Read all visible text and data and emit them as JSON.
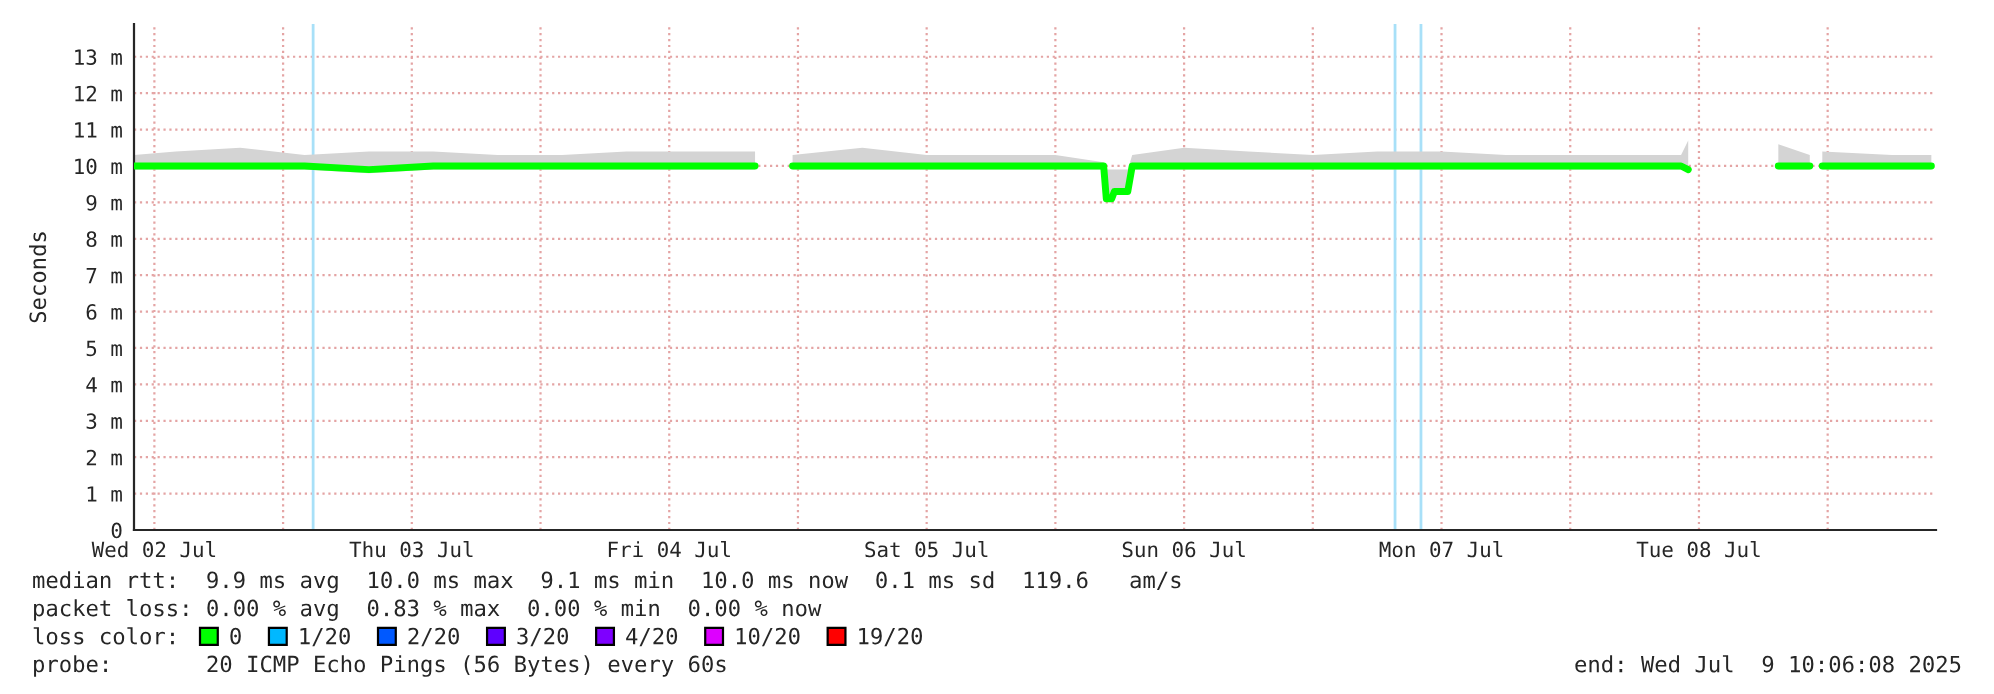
{
  "chart_data": {
    "type": "line",
    "ylabel": "Seconds",
    "x": [
      "2025-07-02T10:06",
      "2025-07-02T14:00",
      "2025-07-02T20:00",
      "2025-07-03T02:00",
      "2025-07-03T08:00",
      "2025-07-03T14:00",
      "2025-07-03T20:00",
      "2025-07-04T02:00",
      "2025-07-04T08:00",
      "2025-07-04T14:00",
      "2025-07-04T20:00",
      "2025-07-04T21:30",
      "2025-07-04T23:30",
      "2025-07-05T06:00",
      "2025-07-05T12:00",
      "2025-07-05T18:00",
      "2025-07-06T00:00",
      "2025-07-06T04:30",
      "2025-07-06T04:45",
      "2025-07-06T05:15",
      "2025-07-06T05:30",
      "2025-07-06T06:45",
      "2025-07-06T07:10",
      "2025-07-06T12:00",
      "2025-07-06T18:00",
      "2025-07-07T00:00",
      "2025-07-07T06:00",
      "2025-07-07T12:00",
      "2025-07-07T18:00",
      "2025-07-08T00:00",
      "2025-07-08T06:00",
      "2025-07-08T10:20",
      "2025-07-08T11:00",
      "2025-07-08T11:30",
      "2025-07-08T19:24",
      "2025-07-08T22:20",
      "2025-07-08T23:00",
      "2025-07-08T23:30",
      "2025-07-09T06:00",
      "2025-07-09T09:40"
    ],
    "series": [
      {
        "name": "0",
        "color": "#00ff00",
        "values": [
          10,
          10,
          10,
          10,
          9.9,
          10,
          10,
          10,
          10,
          10,
          10,
          null,
          10,
          10,
          10,
          10,
          10,
          10,
          9.1,
          9.1,
          9.3,
          9.3,
          10,
          10,
          10,
          10,
          10,
          10,
          10,
          10,
          10,
          10,
          9.9,
          null,
          10,
          10,
          null,
          10,
          10,
          10
        ],
        "lower": [
          9.9,
          9.9,
          9.9,
          9.9,
          9.8,
          9.9,
          9.9,
          9.9,
          9.9,
          9.9,
          9.9,
          null,
          9.9,
          9.9,
          9.9,
          9.9,
          9.9,
          9.9,
          9.1,
          9.1,
          9.3,
          9.3,
          9.9,
          9.9,
          9.9,
          9.9,
          9.9,
          9.9,
          9.9,
          9.9,
          9.9,
          9.9,
          9.9,
          null,
          9.9,
          9.9,
          null,
          9.9,
          9.9,
          9.9
        ],
        "upper": [
          10.3,
          10.4,
          10.5,
          10.3,
          10.4,
          10.4,
          10.3,
          10.3,
          10.4,
          10.4,
          10.4,
          null,
          10.3,
          10.5,
          10.3,
          10.3,
          10.3,
          10.1,
          9.9,
          9.9,
          9.9,
          9.9,
          10.3,
          10.5,
          10.4,
          10.3,
          10.4,
          10.4,
          10.3,
          10.3,
          10.3,
          10.3,
          10.7,
          null,
          10.6,
          10.3,
          null,
          10.4,
          10.3,
          10.3
        ]
      },
      {
        "name": "1/20",
        "color": "#00b8ff",
        "values": [
          null,
          null,
          null,
          null,
          null,
          null,
          null,
          null,
          null,
          null,
          null,
          null,
          null,
          null,
          null,
          null,
          null,
          null,
          null,
          null,
          null,
          null,
          null,
          null,
          null,
          null,
          null,
          null,
          null,
          null,
          null,
          null,
          null,
          null,
          null,
          null,
          null,
          null,
          null,
          null
        ]
      },
      {
        "name": "2/20",
        "color": "#0059ff",
        "values": [
          null,
          null,
          null,
          null,
          null,
          null,
          null,
          null,
          null,
          null,
          null,
          null,
          null,
          null,
          null,
          null,
          null,
          null,
          null,
          null,
          null,
          null,
          null,
          null,
          null,
          null,
          null,
          null,
          null,
          null,
          null,
          null,
          null,
          null,
          null,
          null,
          null,
          null,
          null,
          null
        ]
      },
      {
        "name": "3/20",
        "color": "#5e00ff",
        "values": [
          null,
          null,
          null,
          null,
          null,
          null,
          null,
          null,
          null,
          null,
          null,
          null,
          null,
          null,
          null,
          null,
          null,
          null,
          null,
          null,
          null,
          null,
          null,
          null,
          null,
          null,
          null,
          null,
          null,
          null,
          null,
          null,
          null,
          null,
          null,
          null,
          null,
          null,
          null,
          null
        ]
      },
      {
        "name": "4/20",
        "color": "#7e00ff",
        "values": [
          null,
          null,
          null,
          null,
          null,
          null,
          null,
          null,
          null,
          null,
          null,
          null,
          null,
          null,
          null,
          null,
          null,
          null,
          null,
          null,
          null,
          null,
          null,
          null,
          null,
          null,
          null,
          null,
          null,
          null,
          null,
          null,
          null,
          null,
          null,
          null,
          null,
          null,
          null,
          null
        ]
      },
      {
        "name": "10/20",
        "color": "#dd00ff",
        "values": [
          null,
          null,
          null,
          null,
          null,
          null,
          null,
          null,
          null,
          null,
          null,
          null,
          null,
          null,
          null,
          null,
          null,
          null,
          null,
          null,
          null,
          null,
          null,
          null,
          null,
          null,
          null,
          null,
          null,
          null,
          null,
          null,
          null,
          null,
          null,
          null,
          null,
          null,
          null,
          null
        ]
      },
      {
        "name": "19/20",
        "color": "#ff0000",
        "values": [
          null,
          null,
          null,
          null,
          null,
          null,
          null,
          null,
          null,
          null,
          null,
          null,
          null,
          null,
          null,
          null,
          null,
          null,
          null,
          null,
          null,
          null,
          null,
          null,
          null,
          null,
          null,
          null,
          null,
          null,
          null,
          null,
          null,
          null,
          null,
          null,
          null,
          null,
          null,
          null
        ]
      }
    ],
    "legend_title": "loss color:",
    "legend": "bottom left",
    "ref_lines": [
      {
        "axis": "x",
        "value": "2025-07-03T02:48",
        "color": "#a8e0f8"
      },
      {
        "axis": "x",
        "value": "2025-07-07T07:40",
        "color": "#a8e0f8"
      },
      {
        "axis": "x",
        "value": "2025-07-07T10:05",
        "color": "#a8e0f8"
      }
    ],
    "xlim": [
      "2025-07-02T10:06",
      "2025-07-09T10:06"
    ],
    "xticks": [
      {
        "value": "2025-07-02T12:00",
        "label": "Wed 02 Jul"
      },
      {
        "value": "2025-07-03T00:00",
        "label": null
      },
      {
        "value": "2025-07-03T12:00",
        "label": "Thu 03 Jul"
      },
      {
        "value": "2025-07-04T00:00",
        "label": null
      },
      {
        "value": "2025-07-04T12:00",
        "label": "Fri 04 Jul"
      },
      {
        "value": "2025-07-05T00:00",
        "label": null
      },
      {
        "value": "2025-07-05T12:00",
        "label": "Sat 05 Jul"
      },
      {
        "value": "2025-07-06T00:00",
        "label": null
      },
      {
        "value": "2025-07-06T12:00",
        "label": "Sun 06 Jul"
      },
      {
        "value": "2025-07-07T00:00",
        "label": null
      },
      {
        "value": "2025-07-07T12:00",
        "label": "Mon 07 Jul"
      },
      {
        "value": "2025-07-08T00:00",
        "label": null
      },
      {
        "value": "2025-07-08T12:00",
        "label": "Tue 08 Jul"
      },
      {
        "value": "2025-07-09T00:00",
        "label": null
      }
    ],
    "ylim": [
      0,
      13.9
    ],
    "yticks": [
      0,
      {
        "value": 1,
        "label": "1 m"
      },
      {
        "value": 2,
        "label": "2 m"
      },
      {
        "value": 3,
        "label": "3 m"
      },
      {
        "value": 4,
        "label": "4 m"
      },
      {
        "value": 5,
        "label": "5 m"
      },
      {
        "value": 6,
        "label": "6 m"
      },
      {
        "value": 7,
        "label": "7 m"
      },
      {
        "value": 8,
        "label": "8 m"
      },
      {
        "value": 9,
        "label": "9 m"
      },
      {
        "value": 10,
        "label": "10 m"
      },
      {
        "value": 11,
        "label": "11 m"
      },
      {
        "value": 12,
        "label": "12 m"
      },
      {
        "value": 13,
        "label": "13 m"
      }
    ],
    "grid": true,
    "annotations": [
      "median rtt:  9.9 ms avg  10.0 ms max  9.1 ms min  10.0 ms now  0.1 ms sd  119.6   am/s",
      "packet loss: 0.00 % avg  0.83 % max  0.00 % min  0.00 % now",
      "probe:       20 ICMP Echo Pings (56 Bytes) every 60s",
      "end: Wed Jul  9 10:06:08 2025"
    ]
  }
}
